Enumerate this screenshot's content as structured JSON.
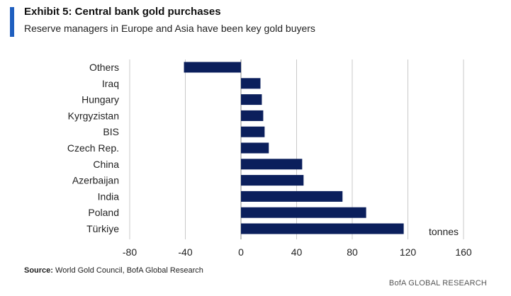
{
  "header": {
    "title": "Exhibit 5: Central bank gold purchases",
    "subtitle": "Reserve managers in Europe and Asia have been key gold buyers"
  },
  "footer": {
    "source_label": "Source:",
    "source_text": "World Gold Council, BofA Global Research",
    "brand": "BofA GLOBAL RESEARCH"
  },
  "colors": {
    "bar": "#0b1f5c",
    "accent": "#1f5fbf",
    "grid": "#c8c8c8"
  },
  "chart_data": {
    "type": "bar",
    "orientation": "horizontal",
    "title": "Exhibit 5: Central bank gold purchases",
    "subtitle": "Reserve managers in Europe and Asia have been key gold buyers",
    "categories": [
      "Others",
      "Iraq",
      "Hungary",
      "Kyrgyzistan",
      "BIS",
      "Czech Rep.",
      "China",
      "Azerbaijan",
      "India",
      "Poland",
      "Türkiye"
    ],
    "values": [
      -41,
      14,
      15,
      16,
      17,
      20,
      44,
      45,
      73,
      90,
      117
    ],
    "xlim": [
      -80,
      160
    ],
    "xticks": [
      -80,
      -40,
      0,
      40,
      80,
      120,
      160
    ],
    "unit_label": "tonnes",
    "grid": "vertical"
  }
}
